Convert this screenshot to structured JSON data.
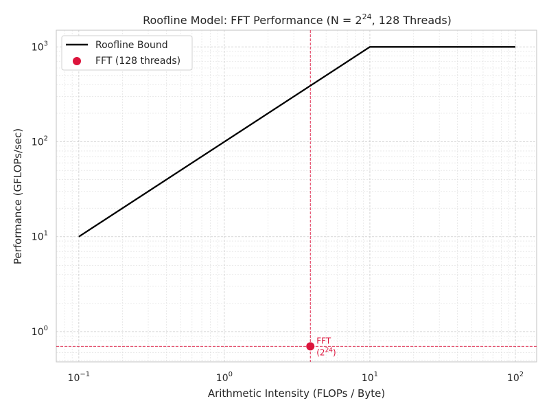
{
  "chart_data": {
    "type": "line",
    "title": {
      "prefix": "Roofline Model: FFT Performance (N = 2",
      "sup": "24",
      "suffix": ", 128 Threads)"
    },
    "xlabel": "Arithmetic Intensity (FLOPs / Byte)",
    "ylabel": "Performance (GFLOPs/sec)",
    "xscale": "log",
    "yscale": "log",
    "xlim": [
      0.07,
      140
    ],
    "ylim": [
      0.48,
      1500
    ],
    "grid": true,
    "legend_position": "top-left",
    "x_ticks": [
      {
        "value": 0.1,
        "base": "10",
        "exp": "−1"
      },
      {
        "value": 1,
        "base": "10",
        "exp": "0"
      },
      {
        "value": 10,
        "base": "10",
        "exp": "1"
      },
      {
        "value": 100,
        "base": "10",
        "exp": "2"
      }
    ],
    "y_ticks": [
      {
        "value": 1,
        "base": "10",
        "exp": "0"
      },
      {
        "value": 10,
        "base": "10",
        "exp": "1"
      },
      {
        "value": 100,
        "base": "10",
        "exp": "2"
      },
      {
        "value": 1000,
        "base": "10",
        "exp": "3"
      }
    ],
    "series": [
      {
        "name": "Roofline Bound",
        "kind": "line",
        "color": "#000000",
        "x": [
          0.1,
          10,
          100
        ],
        "y": [
          10,
          1000,
          1000
        ]
      },
      {
        "name": "FFT (128 threads)",
        "kind": "scatter",
        "color": "#dc143c",
        "x": [
          3.9
        ],
        "y": [
          0.7
        ]
      }
    ],
    "reference_lines": {
      "x": 3.9,
      "y": 0.7,
      "color": "#dc143c"
    },
    "annotation": {
      "line1": "FFT",
      "line2_prefix": "(2",
      "line2_sup": "24",
      "line2_suffix": ")"
    }
  }
}
